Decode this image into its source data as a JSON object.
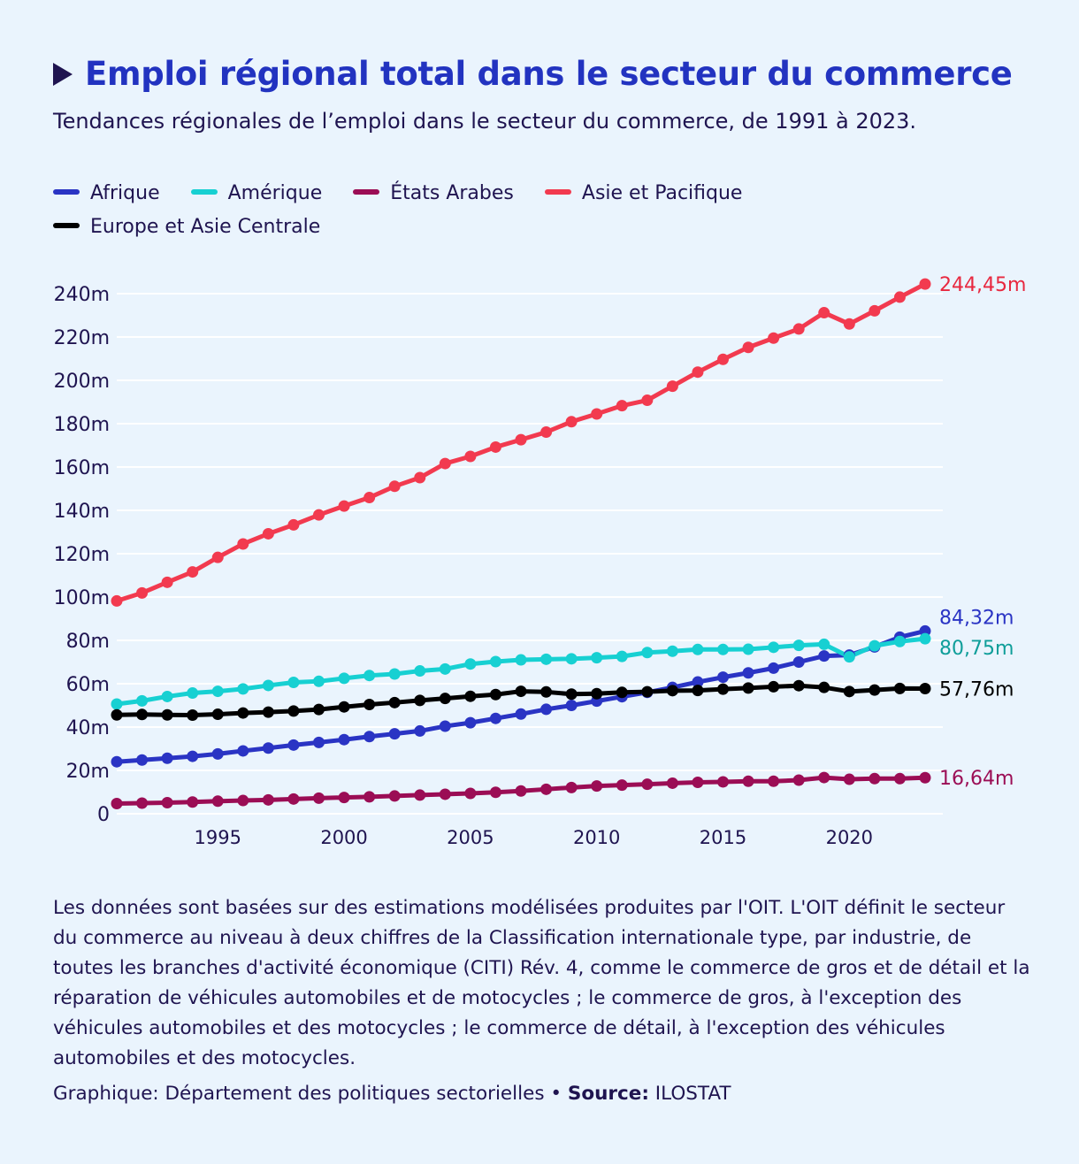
{
  "header": {
    "title": "Emploi régional total dans le secteur du commerce",
    "subtitle": "Tendances régionales de l’emploi dans le secteur du commerce, de 1991 à 2023."
  },
  "colors": {
    "afrique": "#2a34c4",
    "amerique": "#17d0d2",
    "etats_arabes": "#9b0d55",
    "asie": "#f23a4f",
    "europe": "#000000",
    "grid": "#ffffff",
    "text": "#1f1450"
  },
  "chart_data": {
    "type": "line",
    "title": "Emploi régional total dans le secteur du commerce",
    "xlabel": "",
    "ylabel": "",
    "x": [
      1991,
      1992,
      1993,
      1994,
      1995,
      1996,
      1997,
      1998,
      1999,
      2000,
      2001,
      2002,
      2003,
      2004,
      2005,
      2006,
      2007,
      2008,
      2009,
      2010,
      2011,
      2012,
      2013,
      2014,
      2015,
      2016,
      2017,
      2018,
      2019,
      2020,
      2021,
      2022,
      2023
    ],
    "xlim": [
      1991,
      2023.7
    ],
    "ylim": [
      0,
      240
    ],
    "x_ticks": [
      "1995",
      "2000",
      "2005",
      "2010",
      "2015",
      "2020"
    ],
    "x_tick_values": [
      1995,
      2000,
      2005,
      2010,
      2015,
      2020
    ],
    "y_ticks": [
      "0",
      "20m",
      "40m",
      "60m",
      "80m",
      "100m",
      "120m",
      "140m",
      "160m",
      "180m",
      "200m",
      "220m",
      "240m"
    ],
    "y_tick_values": [
      0,
      20,
      40,
      60,
      80,
      100,
      120,
      140,
      160,
      180,
      200,
      220,
      240
    ],
    "grid": true,
    "legend_position": "top",
    "series": [
      {
        "name": "Afrique",
        "key": "afrique",
        "end_label": "84,32m",
        "values": [
          24.0,
          24.8,
          25.6,
          26.5,
          27.6,
          29.0,
          30.3,
          31.7,
          32.9,
          34.2,
          35.6,
          36.9,
          38.2,
          40.4,
          42.0,
          44.0,
          46.0,
          48.2,
          50.0,
          52.0,
          54.0,
          56.0,
          58.3,
          60.8,
          63.0,
          65.0,
          67.2,
          70.0,
          72.8,
          73.2,
          77.0,
          81.5,
          84.32
        ]
      },
      {
        "name": "Amérique",
        "key": "amerique",
        "end_label": "80,75m",
        "values": [
          50.6,
          52.1,
          54.1,
          55.7,
          56.5,
          57.6,
          59.2,
          60.6,
          61.1,
          62.5,
          63.8,
          64.5,
          65.9,
          66.8,
          69.1,
          70.2,
          71.0,
          71.3,
          71.5,
          72.0,
          72.6,
          74.4,
          75.0,
          75.8,
          75.8,
          75.9,
          76.8,
          77.7,
          78.2,
          72.4,
          77.5,
          79.5,
          80.75
        ]
      },
      {
        "name": "États Arabes",
        "key": "etats_arabes",
        "end_label": "16,64m",
        "values": [
          4.7,
          4.9,
          5.1,
          5.4,
          5.8,
          6.1,
          6.4,
          6.8,
          7.2,
          7.5,
          7.8,
          8.2,
          8.6,
          9.0,
          9.4,
          9.9,
          10.5,
          11.3,
          12.1,
          12.8,
          13.2,
          13.6,
          14.1,
          14.5,
          14.7,
          15.0,
          15.0,
          15.5,
          16.7,
          15.9,
          16.2,
          16.2,
          16.64
        ]
      },
      {
        "name": "Asie et Pacifique",
        "key": "asie",
        "end_label": "244,45m",
        "values": [
          98.2,
          101.9,
          106.8,
          111.6,
          118.3,
          124.5,
          129.2,
          133.3,
          137.9,
          142.0,
          145.9,
          151.1,
          155.1,
          161.6,
          164.9,
          169.2,
          172.6,
          176.1,
          180.9,
          184.5,
          188.3,
          190.8,
          197.3,
          203.8,
          209.7,
          215.2,
          219.5,
          223.7,
          231.2,
          226.0,
          232.1,
          238.4,
          244.45
        ]
      },
      {
        "name": "Europe et Asie Centrale",
        "key": "europe",
        "end_label": "57,76m",
        "values": [
          45.6,
          45.8,
          45.6,
          45.5,
          45.9,
          46.5,
          46.9,
          47.4,
          48.1,
          49.3,
          50.4,
          51.3,
          52.3,
          53.2,
          54.2,
          55.0,
          56.5,
          56.2,
          55.2,
          55.4,
          56.0,
          56.3,
          56.8,
          56.9,
          57.5,
          58.0,
          58.6,
          59.1,
          58.3,
          56.4,
          57.1,
          57.8,
          57.76
        ]
      }
    ]
  },
  "legend": {
    "items": [
      "Afrique",
      "Amérique",
      "États Arabes",
      "Asie et Pacifique",
      "Europe et Asie Centrale"
    ]
  },
  "footer": {
    "note": "Les données sont basées sur des estimations modélisées produites par l'OIT. L'OIT définit le secteur du commerce au niveau à deux chiffres de la Classification internationale type, par industrie, de toutes les branches d'activité économique (CITI) Rév. 4, comme le commerce de gros et de détail et la réparation de véhicules automobiles et de motocycles ; le commerce de gros, à l'exception des véhicules automobiles et des motocycles ; le commerce de détail, à l'exception des véhicules automobiles et des motocycles.",
    "credit_prefix": "Graphique: Département des politiques sectorielles • ",
    "source_label": "Source:",
    "source_value": " ILOSTAT"
  }
}
